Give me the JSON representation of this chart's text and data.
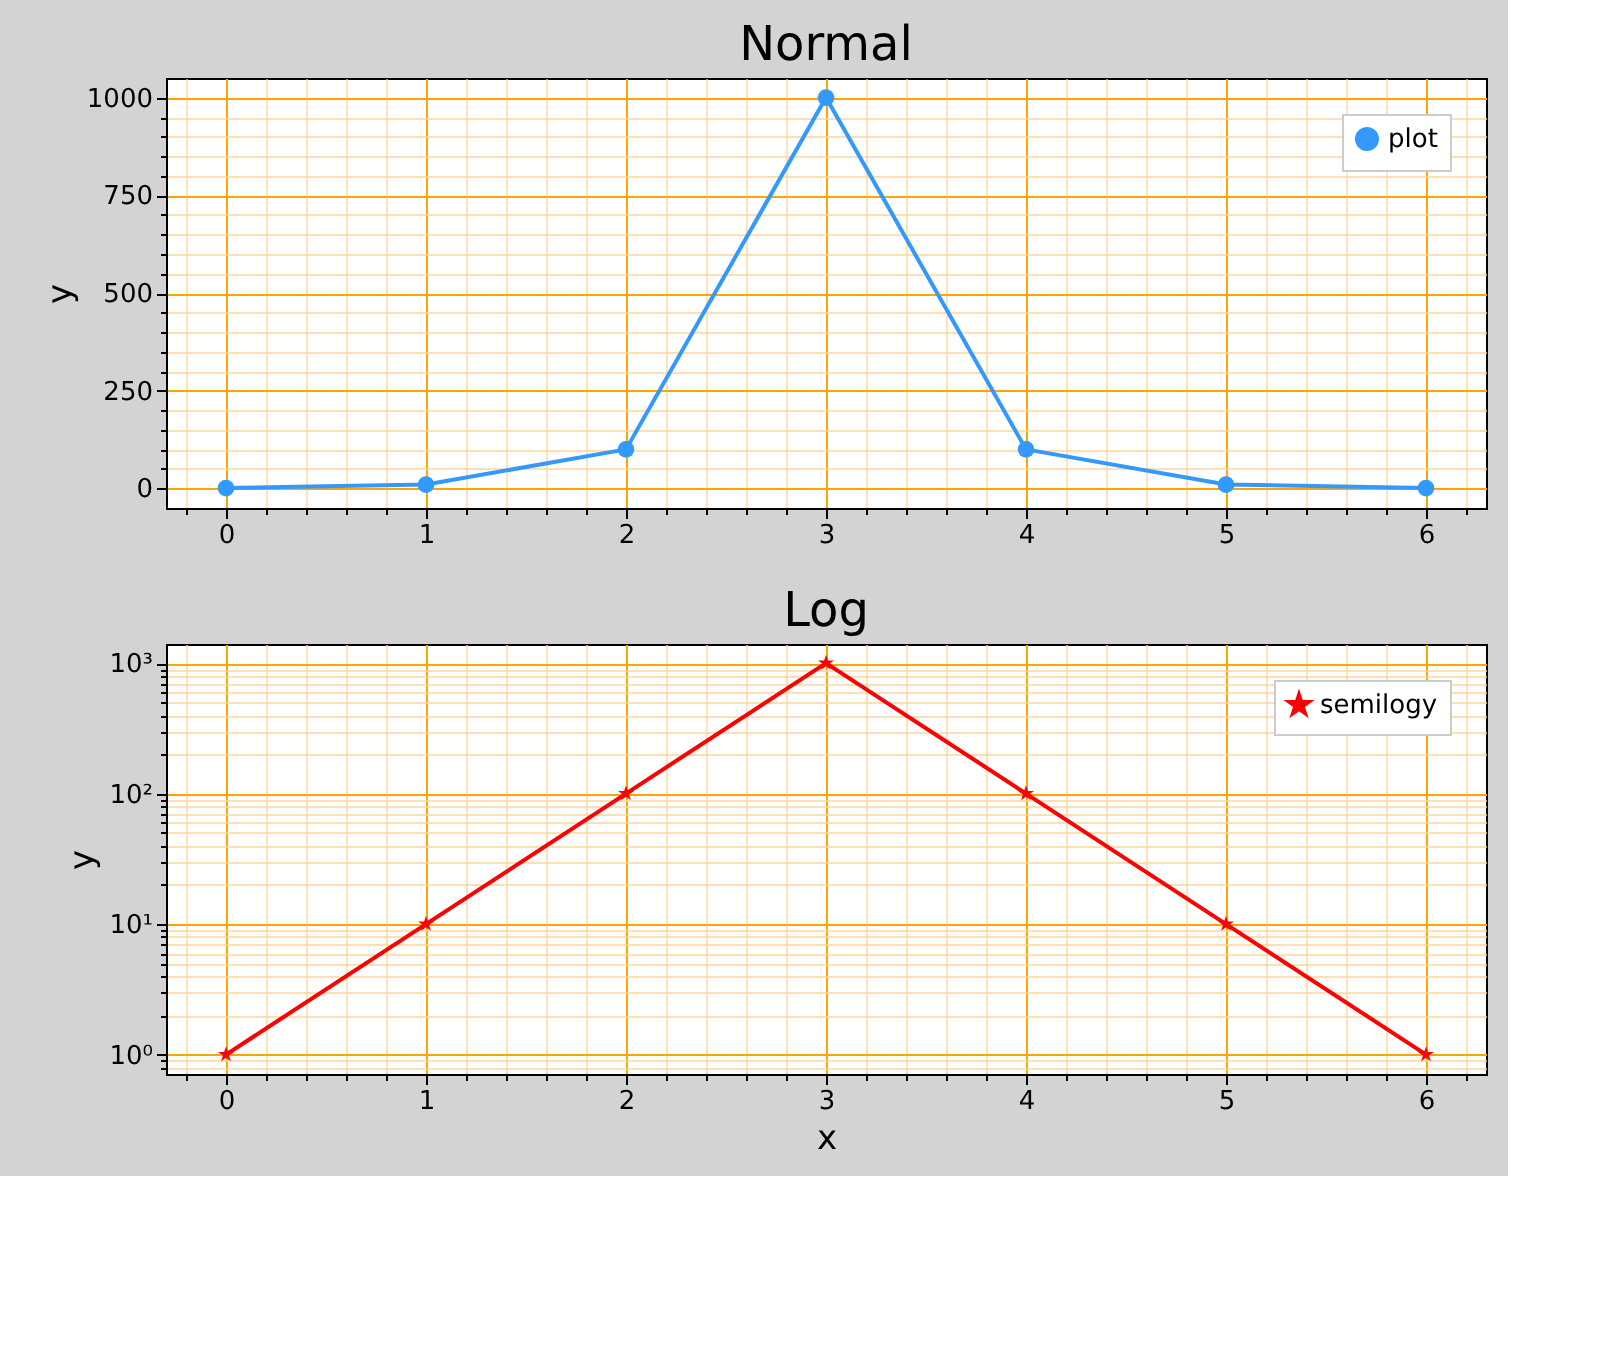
{
  "chart_data": [
    {
      "type": "line",
      "title": "Normal",
      "ylabel": "y",
      "x": [
        0,
        1,
        2,
        3,
        4,
        5,
        6
      ],
      "series": [
        {
          "name": "plot",
          "color": "#3399ff",
          "values": [
            1,
            10,
            100,
            1000,
            100,
            10,
            1
          ]
        }
      ],
      "marker": "circle",
      "line_style": "solid",
      "grid": true,
      "legend": "top right",
      "xlim": [
        -0.3,
        6.3
      ],
      "ylim": [
        -50,
        1050
      ],
      "xticks": [
        0,
        1,
        2,
        3,
        4,
        5,
        6,
        {
          "value": -0.2,
          "label": null
        },
        {
          "value": 0.2,
          "label": null
        },
        {
          "value": 0.4,
          "label": null
        },
        {
          "value": 0.6,
          "label": null
        },
        {
          "value": 0.8,
          "label": null
        },
        {
          "value": 1.2,
          "label": null
        },
        {
          "value": 1.4,
          "label": null
        },
        {
          "value": 1.6,
          "label": null
        },
        {
          "value": 1.8,
          "label": null
        },
        {
          "value": 2.2,
          "label": null
        },
        {
          "value": 2.4,
          "label": null
        },
        {
          "value": 2.6,
          "label": null
        },
        {
          "value": 2.8,
          "label": null
        },
        {
          "value": 3.2,
          "label": null
        },
        {
          "value": 3.4,
          "label": null
        },
        {
          "value": 3.6,
          "label": null
        },
        {
          "value": 3.8,
          "label": null
        },
        {
          "value": 4.2,
          "label": null
        },
        {
          "value": 4.4,
          "label": null
        },
        {
          "value": 4.6,
          "label": null
        },
        {
          "value": 4.8,
          "label": null
        },
        {
          "value": 5.2,
          "label": null
        },
        {
          "value": 5.4,
          "label": null
        },
        {
          "value": 5.6,
          "label": null
        },
        {
          "value": 5.8,
          "label": null
        },
        {
          "value": 6.2,
          "label": null
        }
      ],
      "yticks": [
        0,
        250,
        500,
        750,
        1000,
        {
          "value": 50,
          "label": null
        },
        {
          "value": 100,
          "label": null
        },
        {
          "value": 150,
          "label": null
        },
        {
          "value": 200,
          "label": null
        },
        {
          "value": 300,
          "label": null
        },
        {
          "value": 350,
          "label": null
        },
        {
          "value": 400,
          "label": null
        },
        {
          "value": 450,
          "label": null
        },
        {
          "value": 550,
          "label": null
        },
        {
          "value": 600,
          "label": null
        },
        {
          "value": 650,
          "label": null
        },
        {
          "value": 700,
          "label": null
        },
        {
          "value": 800,
          "label": null
        },
        {
          "value": 850,
          "label": null
        },
        {
          "value": 900,
          "label": null
        },
        {
          "value": 950,
          "label": null
        }
      ]
    },
    {
      "type": "line",
      "title": "Log",
      "xlabel": "x",
      "ylabel": "y",
      "x": [
        0,
        1,
        2,
        3,
        4,
        5,
        6
      ],
      "series": [
        {
          "name": "semilogy",
          "color": "#ff0000",
          "values": [
            1,
            10,
            100,
            1000,
            100,
            10,
            1
          ]
        }
      ],
      "marker": "star",
      "line_style": "solid",
      "grid": true,
      "legend": "top right",
      "log": "y",
      "xlim": [
        -0.3,
        6.3
      ],
      "ylim": [
        0.71,
        1400
      ],
      "xticks": [
        0,
        1,
        2,
        3,
        4,
        5,
        6,
        {
          "value": -0.2,
          "label": null
        },
        {
          "value": 0.2,
          "label": null
        },
        {
          "value": 0.4,
          "label": null
        },
        {
          "value": 0.6,
          "label": null
        },
        {
          "value": 0.8,
          "label": null
        },
        {
          "value": 1.2,
          "label": null
        },
        {
          "value": 1.4,
          "label": null
        },
        {
          "value": 1.6,
          "label": null
        },
        {
          "value": 1.8,
          "label": null
        },
        {
          "value": 2.2,
          "label": null
        },
        {
          "value": 2.4,
          "label": null
        },
        {
          "value": 2.6,
          "label": null
        },
        {
          "value": 2.8,
          "label": null
        },
        {
          "value": 3.2,
          "label": null
        },
        {
          "value": 3.4,
          "label": null
        },
        {
          "value": 3.6,
          "label": null
        },
        {
          "value": 3.8,
          "label": null
        },
        {
          "value": 4.2,
          "label": null
        },
        {
          "value": 4.4,
          "label": null
        },
        {
          "value": 4.6,
          "label": null
        },
        {
          "value": 4.8,
          "label": null
        },
        {
          "value": 5.2,
          "label": null
        },
        {
          "value": 5.4,
          "label": null
        },
        {
          "value": 5.6,
          "label": null
        },
        {
          "value": 5.8,
          "label": null
        },
        {
          "value": 6.2,
          "label": null
        }
      ],
      "yticks": [
        {
          "value": 1,
          "label": "10⁰"
        },
        {
          "value": 10,
          "label": "10¹"
        },
        {
          "value": 100,
          "label": "10²"
        },
        {
          "value": 1000,
          "label": "10³"
        },
        {
          "value": 0.8,
          "label": null
        },
        {
          "value": 0.9,
          "label": null
        },
        {
          "value": 2,
          "label": null
        },
        {
          "value": 3,
          "label": null
        },
        {
          "value": 4,
          "label": null
        },
        {
          "value": 5,
          "label": null
        },
        {
          "value": 6,
          "label": null
        },
        {
          "value": 7,
          "label": null
        },
        {
          "value": 8,
          "label": null
        },
        {
          "value": 9,
          "label": null
        },
        {
          "value": 20,
          "label": null
        },
        {
          "value": 30,
          "label": null
        },
        {
          "value": 40,
          "label": null
        },
        {
          "value": 50,
          "label": null
        },
        {
          "value": 60,
          "label": null
        },
        {
          "value": 70,
          "label": null
        },
        {
          "value": 80,
          "label": null
        },
        {
          "value": 90,
          "label": null
        },
        {
          "value": 200,
          "label": null
        },
        {
          "value": 300,
          "label": null
        },
        {
          "value": 400,
          "label": null
        },
        {
          "value": 500,
          "label": null
        },
        {
          "value": 600,
          "label": null
        },
        {
          "value": 700,
          "label": null
        },
        {
          "value": 800,
          "label": null
        },
        {
          "value": 900,
          "label": null
        }
      ]
    }
  ]
}
